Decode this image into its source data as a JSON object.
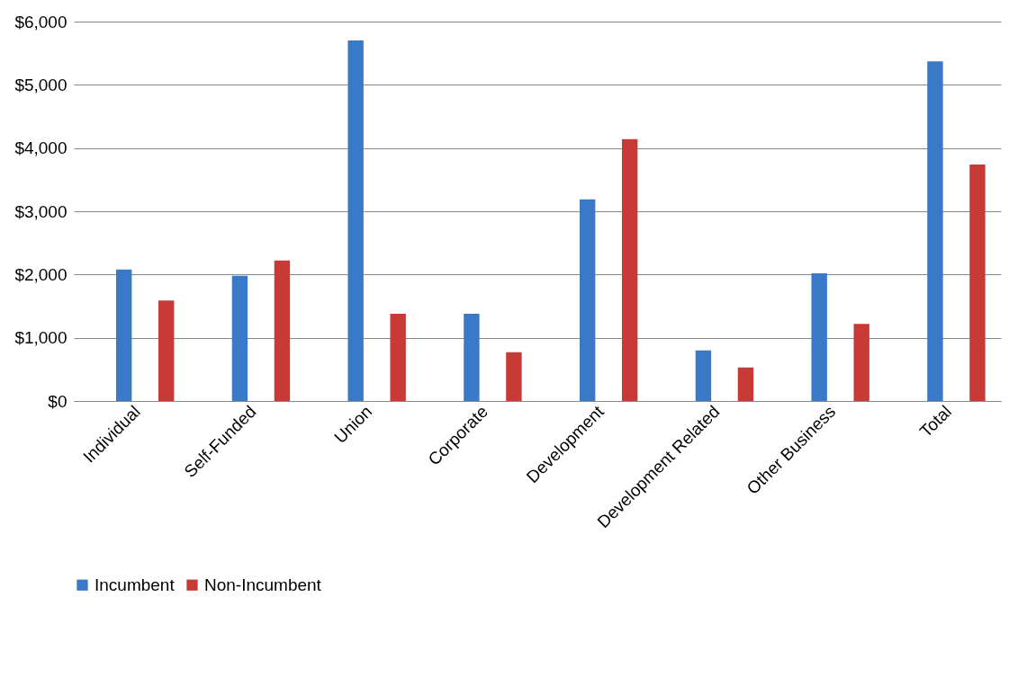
{
  "chart_data": {
    "type": "bar",
    "categories": [
      "Individual",
      "Self-Funded",
      "Union",
      "Corporate",
      "Development",
      "Development Related",
      "Other Business",
      "Total"
    ],
    "series": [
      {
        "name": "Incumbent",
        "color": "#3a78c8",
        "values": [
          2080,
          1980,
          5700,
          1380,
          3190,
          800,
          2020,
          5370
        ]
      },
      {
        "name": "Non-Incumbent",
        "color": "#c83a35",
        "values": [
          1590,
          2220,
          1380,
          770,
          4140,
          530,
          1220,
          3740
        ]
      }
    ],
    "ylim": [
      0,
      6000
    ],
    "yticks": [
      {
        "value": 0,
        "label": "$0"
      },
      {
        "value": 1000,
        "label": "$1,000"
      },
      {
        "value": 2000,
        "label": "$2,000"
      },
      {
        "value": 3000,
        "label": "$3,000"
      },
      {
        "value": 4000,
        "label": "$4,000"
      },
      {
        "value": 5000,
        "label": "$5,000"
      },
      {
        "value": 6000,
        "label": "$6,000"
      }
    ],
    "grid": "y",
    "legend": "bottom"
  }
}
